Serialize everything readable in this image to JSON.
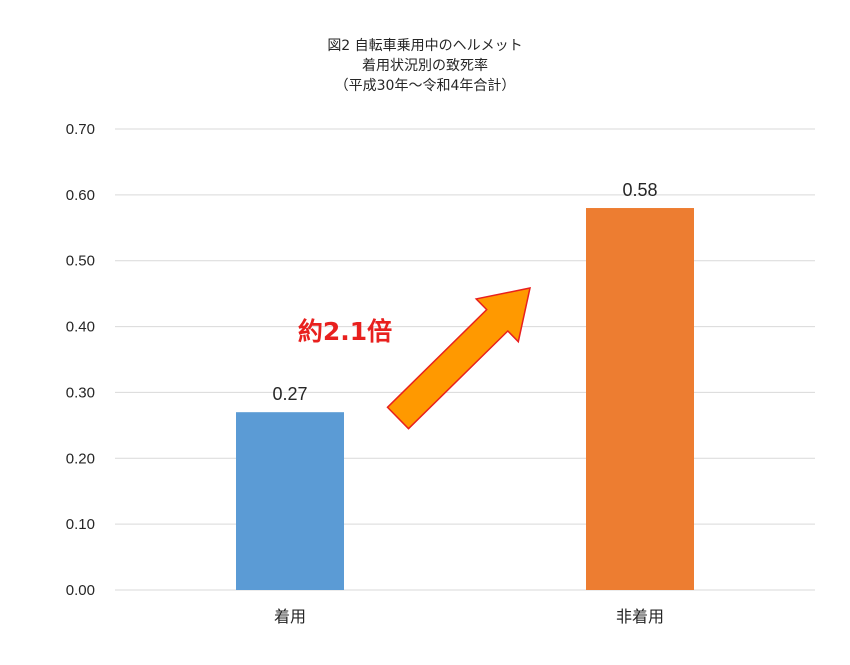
{
  "chart_data": {
    "type": "bar",
    "title_lines": [
      "図2  自転車乗用中のヘルメット",
      "着用状況別の致死率",
      "（平成30年〜令和4年合計）"
    ],
    "categories": [
      "着用",
      "非着用"
    ],
    "values": [
      0.27,
      0.58
    ],
    "data_labels": [
      "0.27",
      "0.58"
    ],
    "bar_colors": [
      "#5b9bd5",
      "#ed7d31"
    ],
    "ylim": [
      0,
      0.7
    ],
    "yticks": [
      "0.00",
      "0.10",
      "0.20",
      "0.30",
      "0.40",
      "0.50",
      "0.60",
      "0.70"
    ],
    "grid": true,
    "legend": "none",
    "annotation": {
      "text": "約2.1倍",
      "color": "#e8201e",
      "arrow_fill": "#ff9900",
      "arrow_stroke": "#e8201e"
    }
  }
}
